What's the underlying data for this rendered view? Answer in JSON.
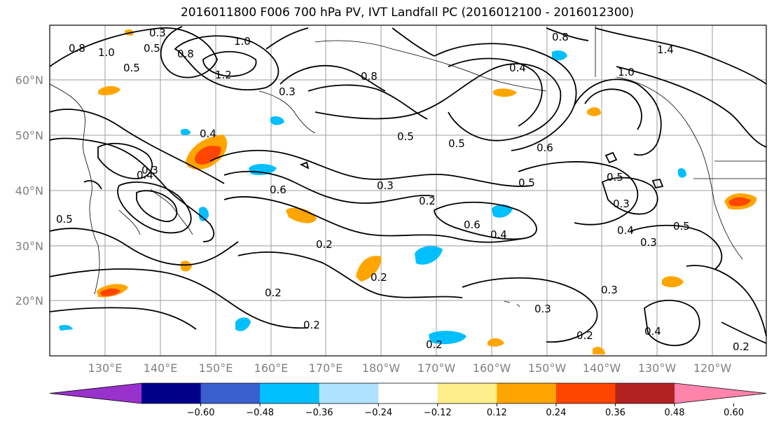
{
  "title": "2016011800 F006 700 hPa PV, IVT Landfall PC (2016012100 - 2016012300)",
  "map": {
    "lat_labels": [
      "60°N",
      "50°N",
      "40°N",
      "30°N",
      "20°N"
    ],
    "lon_labels": [
      "130°E",
      "140°E",
      "150°E",
      "160°E",
      "170°E",
      "180°W",
      "170°W",
      "160°W",
      "150°W",
      "140°W",
      "130°W",
      "120°W"
    ],
    "contour_labels": [
      "0.3",
      "0.5",
      "1.0",
      "0.8",
      "0.8",
      "1.4",
      "1.0",
      "0.5",
      "1.2",
      "0.4",
      "0.8",
      "1.0",
      "0.8",
      "0.4",
      "0.5",
      "0.6",
      "0.5",
      "0.5",
      "0.4",
      "0.3",
      "0.6",
      "0.3",
      "0.2",
      "0.5",
      "0.3",
      "0.4",
      "0.6",
      "0.4",
      "0.5",
      "0.3",
      "0.2",
      "0.2",
      "0.2",
      "0.3",
      "0.3",
      "0.2",
      "0.2",
      "0.4",
      "0.2",
      "0.2",
      "0.5",
      "0.3"
    ]
  },
  "colorbar": {
    "colors": [
      "#9932cc",
      "#00008b",
      "#3a5fcd",
      "#00bfff",
      "#b0e2ff",
      "#ffffff",
      "#ffec8b",
      "#ffa500",
      "#ff4500",
      "#b22222",
      "#ff83aa"
    ],
    "ticks": [
      "−0.60",
      "−0.48",
      "−0.36",
      "−0.24",
      "−0.12",
      "0.12",
      "0.24",
      "0.36",
      "0.48",
      "0.60"
    ]
  }
}
